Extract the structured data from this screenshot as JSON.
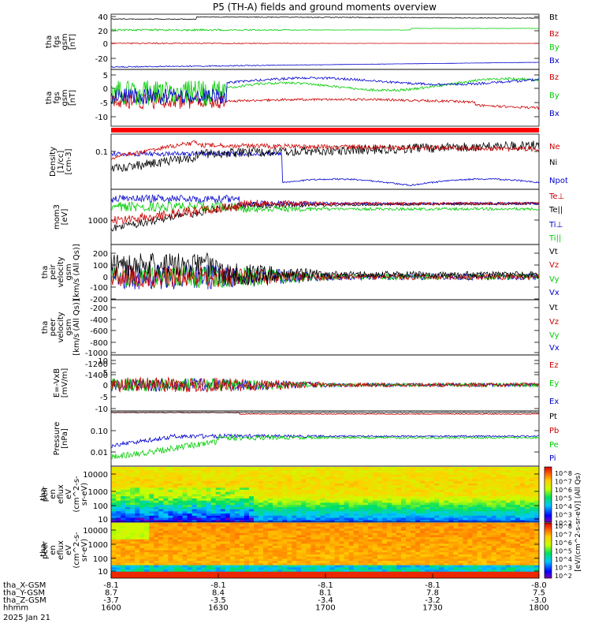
{
  "title": "P5 (TH-A) fields and ground moments overview",
  "chart_data": [
    {
      "type": "line",
      "ylabel": [
        "tha",
        "fgs",
        "gsm",
        "[nT]"
      ],
      "yticks": [
        40,
        20,
        0,
        -20
      ],
      "ylim": [
        -36,
        44
      ],
      "series": [
        {
          "name": "Bt",
          "color": "#000000",
          "baseline": 38
        },
        {
          "name": "Bz",
          "color": "#cc0000",
          "baseline": 0
        },
        {
          "name": "By",
          "color": "#00cc00",
          "baseline": 20
        },
        {
          "name": "Bx",
          "color": "#0000cc",
          "baseline": -30
        }
      ]
    },
    {
      "type": "line",
      "ylabel": [
        "tha",
        "fgs",
        "gsm",
        "[nT]"
      ],
      "yticks": [
        5,
        0,
        -5,
        -10
      ],
      "ylim": [
        -14,
        7
      ],
      "series": [
        {
          "name": "Bz",
          "color": "#cc0000"
        },
        {
          "name": "By",
          "color": "#00cc00"
        },
        {
          "name": "Bx",
          "color": "#0000cc"
        }
      ]
    },
    {
      "type": "line",
      "ylabel": [
        "Density",
        "[1/cc]",
        "[cm-3]"
      ],
      "yticks": [
        "0.1"
      ],
      "ylim": [
        0.01,
        0.25
      ],
      "log": true,
      "series": [
        {
          "name": "Ne",
          "color": "#cc0000"
        },
        {
          "name": "Ni",
          "color": "#000000"
        },
        {
          "name": "Npot",
          "color": "#0000cc"
        }
      ]
    },
    {
      "type": "line",
      "ylabel": [
        "mom3",
        "[eV]"
      ],
      "yticks": [
        "1000"
      ],
      "log": true,
      "series": [
        {
          "name": "Te⊥",
          "color": "#cc0000"
        },
        {
          "name": "Te||",
          "color": "#000000"
        },
        {
          "name": "Ti⊥",
          "color": "#0000cc"
        },
        {
          "name": "Ti||",
          "color": "#00cc00"
        }
      ]
    },
    {
      "type": "line",
      "ylabel": [
        "tha",
        "peir",
        "velocity",
        "gsm",
        "[km/s (All Qs)]"
      ],
      "yticks": [
        200,
        100,
        0,
        -100,
        -200
      ],
      "ylim": [
        -220,
        260
      ],
      "series": [
        {
          "name": "Vt",
          "color": "#000000"
        },
        {
          "name": "Vz",
          "color": "#cc0000"
        },
        {
          "name": "Vy",
          "color": "#00cc00"
        },
        {
          "name": "Vx",
          "color": "#0000cc"
        }
      ]
    },
    {
      "type": "line",
      "ylabel": [
        "tha",
        "peer",
        "velocity",
        "gsm",
        "[km/s (All Qs)]"
      ],
      "yticks": [
        -200,
        -400,
        -600,
        -800,
        -1000,
        -1200,
        -1400
      ],
      "ylim": [
        -1500,
        -160
      ],
      "series": [
        {
          "name": "Vt",
          "color": "#000000"
        },
        {
          "name": "Vz",
          "color": "#cc0000"
        },
        {
          "name": "Vy",
          "color": "#00cc00"
        },
        {
          "name": "Vx",
          "color": "#0000cc"
        }
      ]
    },
    {
      "type": "line",
      "ylabel": [
        "E=-VxB",
        "[mV/m]"
      ],
      "yticks": [
        10,
        5,
        0,
        -5,
        -10
      ],
      "ylim": [
        -11,
        11
      ],
      "series": [
        {
          "name": "Ez",
          "color": "#cc0000"
        },
        {
          "name": "Ey",
          "color": "#00cc00"
        },
        {
          "name": "Ex",
          "color": "#0000cc"
        }
      ]
    },
    {
      "type": "line",
      "ylabel": [
        "Pressure",
        "[nPa]"
      ],
      "yticks": [
        "0.10",
        "0.01"
      ],
      "log": true,
      "series": [
        {
          "name": "Pt",
          "color": "#000000"
        },
        {
          "name": "Pb",
          "color": "#cc0000"
        },
        {
          "name": "Pe",
          "color": "#00cc00"
        },
        {
          "name": "Pi",
          "color": "#0000cc"
        }
      ]
    },
    {
      "type": "heatmap",
      "ylabel": [
        "tha",
        "peir",
        "en",
        "eflux",
        "eV",
        "(cm^2-s-",
        "sr-eV)"
      ],
      "yticks": [
        "10000",
        "1000",
        "100",
        "10"
      ],
      "log": true
    },
    {
      "type": "heatmap",
      "ylabel": [
        "tha",
        "peer",
        "en",
        "eflux",
        "eV",
        "(cm^2-s-",
        "sr-eV)"
      ],
      "yticks": [
        "10000",
        "1000",
        "100",
        "10"
      ],
      "log": true
    }
  ],
  "colorbar": {
    "label": "[eV/(cm^2-s-sr-eV)] (All Qs)",
    "top_ticks": [
      "10^8",
      "10^7",
      "10^6",
      "10^5",
      "10^4",
      "10^3",
      "10^2"
    ],
    "bottom_ticks": [
      "10^8",
      "10^7",
      "10^6",
      "10^5",
      "10^4",
      "10^3",
      "10^2"
    ]
  },
  "xaxis": {
    "rows": [
      {
        "label": "tha_X-GSM",
        "values": [
          "-8.1",
          "-8.1",
          "-8.1",
          "-8.1",
          "-8.0"
        ]
      },
      {
        "label": "tha_Y-GSM",
        "values": [
          "8.7",
          "8.4",
          "8.1",
          "7.8",
          "7.5"
        ]
      },
      {
        "label": "tha_Z-GSM",
        "values": [
          "-3.7",
          "-3.5",
          "-3.4",
          "-3.2",
          "-3.0"
        ]
      },
      {
        "label": "hhmm",
        "values": [
          "1600",
          "1630",
          "1700",
          "1730",
          "1800"
        ]
      }
    ],
    "date": "2025 Jan 21"
  },
  "colors": {
    "black": "#000000",
    "red": "#cc0000",
    "green": "#00cc00",
    "blue": "#0000cc"
  }
}
